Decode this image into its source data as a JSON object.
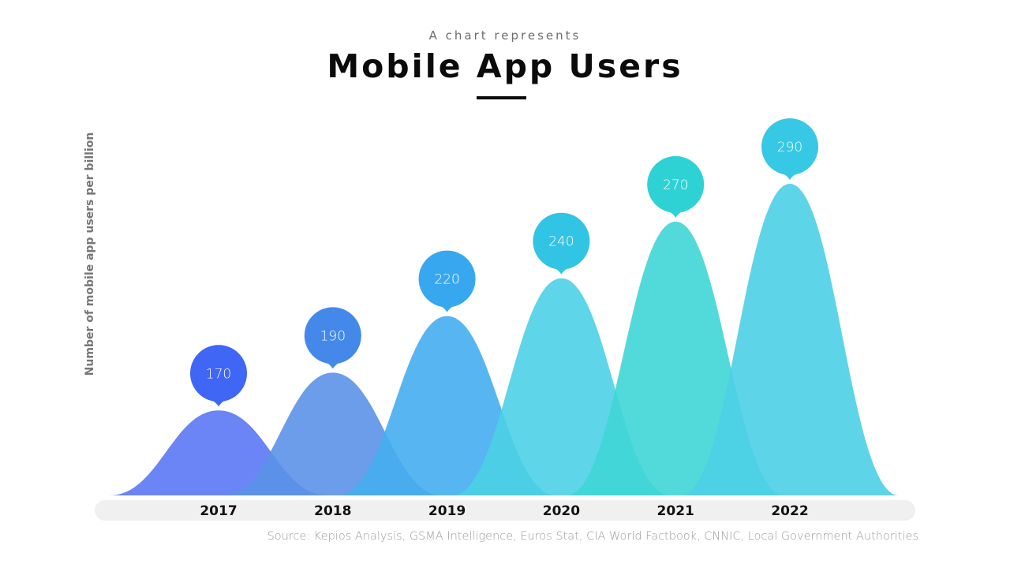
{
  "header": {
    "subtitle": "A chart represents",
    "title": "Mobile App Users"
  },
  "chart_data": {
    "type": "area",
    "title": "Mobile App Users",
    "subtitle": "A chart represents",
    "xlabel": "",
    "ylabel": "Number of mobile app users per billion",
    "categories": [
      "2017",
      "2018",
      "2019",
      "2020",
      "2021",
      "2022"
    ],
    "values": [
      170,
      190,
      220,
      240,
      270,
      290
    ],
    "data_labels": [
      "170",
      "190",
      "220",
      "240",
      "270",
      "290"
    ],
    "ylim": [
      125,
      290
    ],
    "grid": false,
    "colors": {
      "humps": [
        "#5b78f5",
        "#5b92e8",
        "#45aef0",
        "#4cd0e6",
        "#3fd6d6",
        "#4ccfe6"
      ],
      "bubbles": [
        "#3f66f5",
        "#4488ea",
        "#37a8f0",
        "#31c4e4",
        "#2fd2d4",
        "#36c8e4"
      ]
    },
    "source": "Source: Kepios Analysis, GSMA Intelligence, Euros Stat, CIA World Factbook,  CNNIC, Local Government Authorities"
  }
}
